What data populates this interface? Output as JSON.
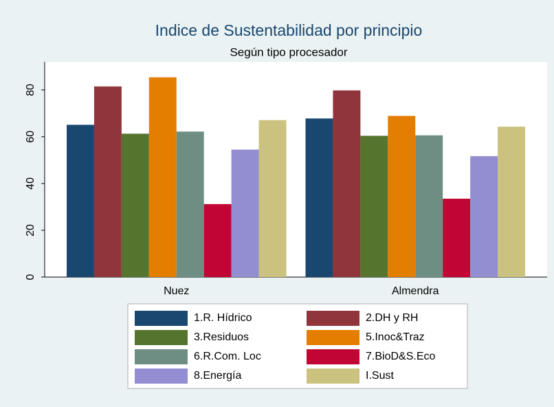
{
  "chart_data": {
    "type": "bar",
    "title": "Indice de Sustentabilidad por principio",
    "subtitle": "Según tipo procesador",
    "categories": [
      "Nuez",
      "Almendra"
    ],
    "series": [
      {
        "name": "1.R. Hídrico",
        "color": "#1a476f",
        "values": [
          65.1,
          67.8
        ]
      },
      {
        "name": "2.DH y RH",
        "color": "#90353b",
        "values": [
          81.5,
          79.8
        ]
      },
      {
        "name": "3.Residuos",
        "color": "#55752f",
        "values": [
          61.3,
          60.4
        ]
      },
      {
        "name": "5.Inoc&Traz",
        "color": "#e37e00",
        "values": [
          85.4,
          68.9
        ]
      },
      {
        "name": "6.R.Com. Loc",
        "color": "#6e8e84",
        "values": [
          62.2,
          60.6
        ]
      },
      {
        "name": "7.BioD&S.Eco",
        "color": "#c10534",
        "values": [
          31.2,
          33.5
        ]
      },
      {
        "name": "8.Energía",
        "color": "#938dd2",
        "values": [
          54.5,
          51.7
        ]
      },
      {
        "name": "I.Sust",
        "color": "#cac27e",
        "values": [
          67.1,
          64.3
        ]
      }
    ],
    "ylim": [
      0,
      92
    ],
    "yticks": [
      0,
      20,
      40,
      60,
      80
    ]
  }
}
